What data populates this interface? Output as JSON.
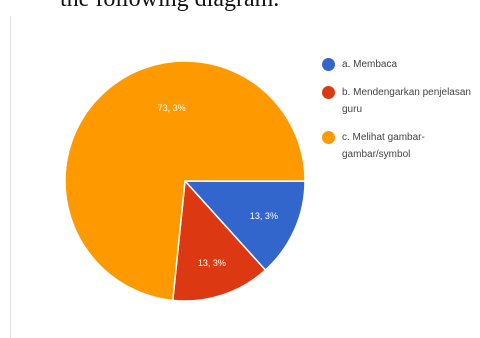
{
  "heading_fragment": "the following diagram.",
  "chart_data": {
    "type": "pie",
    "slices": [
      {
        "key": "a",
        "label": "a. Membaca",
        "value": 13.3,
        "display": "13, 3%",
        "color": "#3366cc"
      },
      {
        "key": "b",
        "label": "b. Mendengarkan penjelasan guru",
        "value": 13.3,
        "display": "13, 3%",
        "color": "#dc3912"
      },
      {
        "key": "c",
        "label": "c. Melihat gambar-gambar/symbol",
        "value": 73.3,
        "display": "73, 3%",
        "color": "#ff9900"
      }
    ],
    "legend_position": "right",
    "start_angle_deg": 0,
    "direction": "clockwise"
  }
}
